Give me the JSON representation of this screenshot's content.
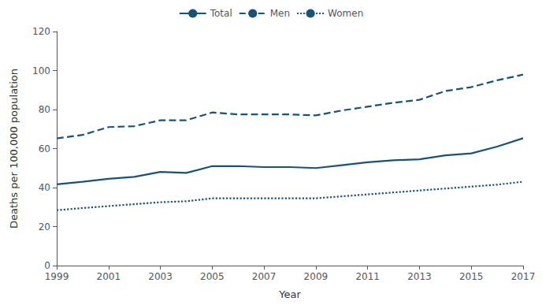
{
  "chart_data": {
    "type": "line",
    "xlabel": "Year",
    "ylabel": "Deaths per 100,000 population",
    "x": [
      1999,
      2000,
      2001,
      2002,
      2003,
      2004,
      2005,
      2006,
      2007,
      2008,
      2009,
      2010,
      2011,
      2012,
      2013,
      2014,
      2015,
      2016,
      2017
    ],
    "series": [
      {
        "name": "Total",
        "color": "#1a5276",
        "line_style": "solid",
        "values": [
          41.7,
          43.0,
          44.5,
          45.5,
          48.0,
          47.5,
          51.0,
          51.0,
          50.5,
          50.5,
          50.0,
          51.5,
          53.0,
          54.0,
          54.5,
          56.5,
          57.5,
          61.0,
          65.3
        ]
      },
      {
        "name": "Men",
        "color": "#1a5276",
        "line_style": "dashed",
        "values": [
          65.2,
          67.0,
          71.0,
          71.5,
          74.5,
          74.5,
          78.5,
          77.5,
          77.5,
          77.5,
          77.0,
          79.5,
          81.5,
          83.5,
          85.0,
          89.5,
          91.5,
          95.0,
          97.9
        ]
      },
      {
        "name": "Women",
        "color": "#1a5276",
        "line_style": "dotted",
        "values": [
          28.4,
          29.5,
          30.5,
          31.5,
          32.5,
          33.0,
          34.5,
          34.5,
          34.5,
          34.5,
          34.5,
          35.5,
          36.5,
          37.5,
          38.5,
          39.5,
          40.5,
          41.5,
          43.0
        ]
      }
    ],
    "xlim": [
      1999,
      2017
    ],
    "xticks": [
      1999,
      2001,
      2003,
      2005,
      2007,
      2009,
      2011,
      2013,
      2015,
      2017
    ],
    "ylim": [
      0,
      120
    ],
    "yticks": [
      0,
      20,
      40,
      60,
      80,
      100,
      120
    ],
    "grid": false,
    "legend": "top"
  }
}
